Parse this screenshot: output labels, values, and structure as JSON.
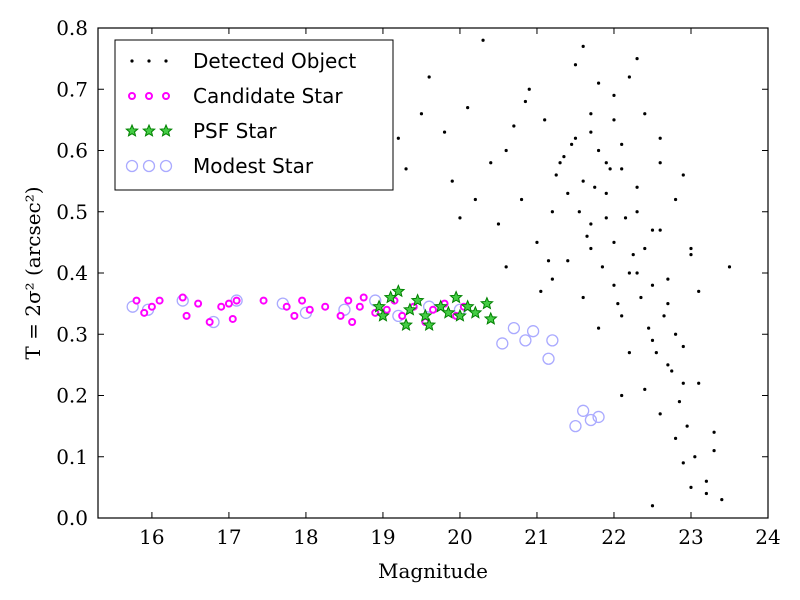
{
  "chart_data": {
    "type": "scatter",
    "xlabel": "Magnitude",
    "ylabel": "T = 2σ² (arcsec²)",
    "xlim": [
      15.3,
      24
    ],
    "ylim": [
      0.0,
      0.8
    ],
    "xticks": [
      "16",
      "17",
      "18",
      "19",
      "20",
      "21",
      "22",
      "23",
      "24"
    ],
    "yticks": [
      "0.0",
      "0.1",
      "0.2",
      "0.3",
      "0.4",
      "0.5",
      "0.6",
      "0.7",
      "0.8"
    ],
    "legend_position": "top-left",
    "colors": {
      "detected": "#000000",
      "candidate": "#ff00ff",
      "psf": "#008000",
      "modest": "#aaaaff"
    },
    "series": [
      {
        "name": "Detected Object",
        "marker": "dot",
        "points_note": "",
        "x": [
          19.2,
          19.6,
          19.9,
          20.1,
          20.3,
          20.5,
          20.6,
          20.8,
          20.9,
          21.0,
          21.1,
          21.2,
          21.3,
          21.4,
          21.5,
          21.6,
          21.7,
          21.8,
          21.9,
          22.0,
          22.1,
          22.2,
          22.3,
          22.4,
          22.5,
          22.6,
          22.7,
          22.8,
          22.9,
          23.0,
          23.1,
          23.3,
          23.5,
          19.5,
          20.0,
          20.4,
          20.7,
          21.05,
          21.25,
          21.45,
          21.55,
          21.65,
          21.75,
          21.85,
          21.95,
          22.05,
          22.15,
          22.25,
          22.35,
          22.45,
          22.55,
          22.65,
          22.75,
          22.85,
          22.95,
          23.05,
          23.2,
          23.4,
          20.2,
          20.85,
          21.15,
          21.35,
          21.6,
          21.7,
          21.8,
          21.9,
          22.0,
          22.1,
          22.2,
          22.3,
          22.4,
          22.5,
          22.6,
          22.7,
          22.8,
          22.9,
          23.0,
          21.5,
          21.7,
          21.9,
          22.1,
          22.3,
          22.5,
          22.7,
          22.9,
          23.1,
          23.3,
          21.6,
          21.8,
          22.0,
          22.2,
          22.4,
          22.6,
          22.8,
          23.0,
          21.7,
          22.0,
          22.3,
          22.6,
          22.9,
          19.3,
          19.8,
          20.6,
          21.2,
          21.4,
          22.1,
          22.5,
          23.2
        ],
        "y": [
          0.62,
          0.72,
          0.55,
          0.67,
          0.78,
          0.48,
          0.6,
          0.52,
          0.7,
          0.45,
          0.65,
          0.5,
          0.58,
          0.42,
          0.62,
          0.55,
          0.48,
          0.6,
          0.53,
          0.45,
          0.57,
          0.4,
          0.5,
          0.44,
          0.38,
          0.47,
          0.35,
          0.3,
          0.28,
          0.44,
          0.22,
          0.11,
          0.41,
          0.66,
          0.49,
          0.58,
          0.64,
          0.37,
          0.56,
          0.61,
          0.5,
          0.46,
          0.54,
          0.41,
          0.57,
          0.35,
          0.49,
          0.43,
          0.36,
          0.31,
          0.27,
          0.33,
          0.24,
          0.19,
          0.15,
          0.1,
          0.06,
          0.03,
          0.52,
          0.68,
          0.42,
          0.59,
          0.36,
          0.44,
          0.31,
          0.49,
          0.38,
          0.33,
          0.27,
          0.4,
          0.21,
          0.29,
          0.17,
          0.25,
          0.13,
          0.09,
          0.05,
          0.74,
          0.66,
          0.58,
          0.61,
          0.54,
          0.47,
          0.39,
          0.22,
          0.37,
          0.14,
          0.77,
          0.71,
          0.65,
          0.72,
          0.66,
          0.58,
          0.52,
          0.43,
          0.63,
          0.69,
          0.75,
          0.62,
          0.56,
          0.57,
          0.63,
          0.41,
          0.39,
          0.53,
          0.2,
          0.02,
          0.04
        ]
      },
      {
        "name": "Candidate Star",
        "marker": "circle",
        "x": [
          15.8,
          15.9,
          16.0,
          16.1,
          16.4,
          16.45,
          16.6,
          16.75,
          16.9,
          17.0,
          17.05,
          17.1,
          17.45,
          17.75,
          17.85,
          17.95,
          18.05,
          18.25,
          18.45,
          18.55,
          18.6,
          18.7,
          18.75,
          18.9,
          19.05,
          19.15,
          19.25,
          19.4,
          19.55,
          19.65,
          19.8,
          19.95,
          20.05
        ],
        "y": [
          0.355,
          0.335,
          0.345,
          0.355,
          0.36,
          0.33,
          0.35,
          0.32,
          0.345,
          0.35,
          0.325,
          0.355,
          0.355,
          0.345,
          0.33,
          0.355,
          0.34,
          0.345,
          0.33,
          0.355,
          0.32,
          0.345,
          0.36,
          0.335,
          0.34,
          0.355,
          0.33,
          0.345,
          0.32,
          0.34,
          0.35,
          0.33,
          0.345
        ]
      },
      {
        "name": "PSF Star",
        "marker": "star",
        "x": [
          18.95,
          19.0,
          19.1,
          19.2,
          19.3,
          19.35,
          19.45,
          19.55,
          19.6,
          19.75,
          19.85,
          19.95,
          20.0,
          20.1,
          20.2,
          20.35,
          20.4
        ],
        "y": [
          0.345,
          0.33,
          0.36,
          0.37,
          0.315,
          0.34,
          0.355,
          0.33,
          0.315,
          0.345,
          0.335,
          0.36,
          0.33,
          0.345,
          0.335,
          0.35,
          0.325
        ]
      },
      {
        "name": "Modest Star",
        "marker": "open-circle",
        "x": [
          15.75,
          15.95,
          16.4,
          16.8,
          17.1,
          17.7,
          18.0,
          18.5,
          18.9,
          19.2,
          19.6,
          20.0,
          20.55,
          20.7,
          20.85,
          20.95,
          21.15,
          21.2,
          21.5,
          21.6,
          21.7,
          21.8
        ],
        "y": [
          0.345,
          0.34,
          0.355,
          0.32,
          0.355,
          0.35,
          0.335,
          0.34,
          0.355,
          0.33,
          0.345,
          0.34,
          0.285,
          0.31,
          0.29,
          0.305,
          0.26,
          0.29,
          0.15,
          0.175,
          0.16,
          0.165
        ]
      }
    ]
  }
}
